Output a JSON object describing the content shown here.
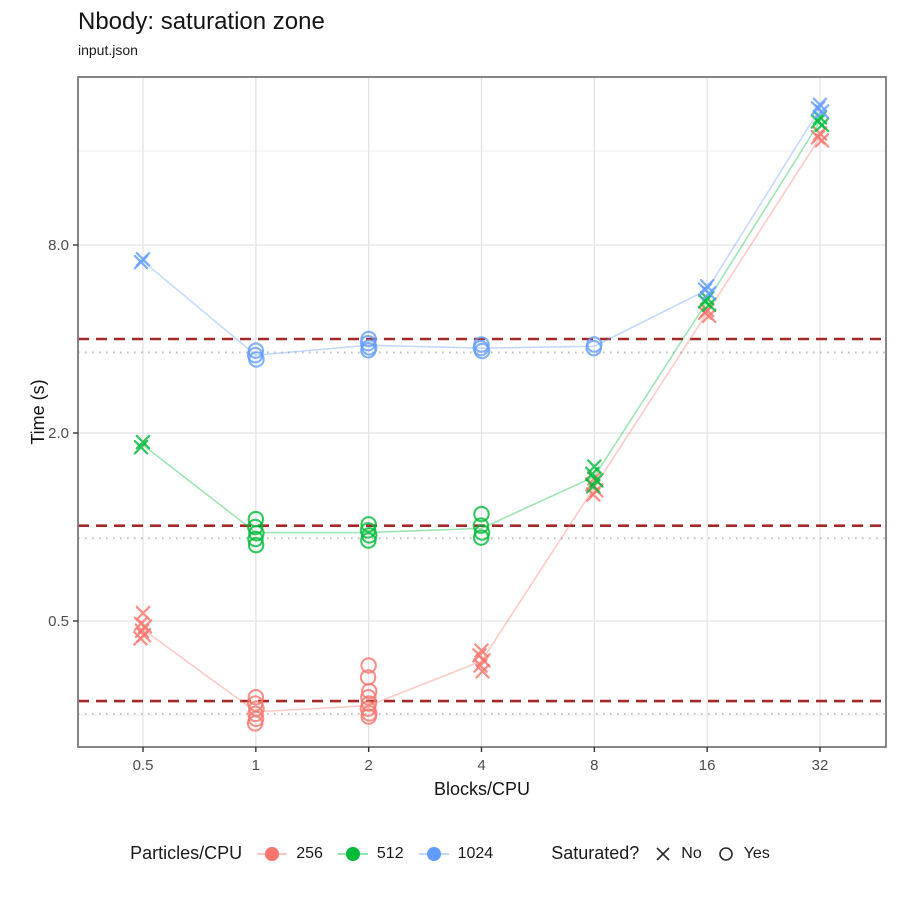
{
  "header": {
    "title": "Nbody: saturation zone",
    "subtitle": "input.json"
  },
  "chart_data": {
    "type": "scatter",
    "title": "Nbody: saturation zone",
    "subtitle": "input.json",
    "xlabel": "Blocks/CPU",
    "ylabel": "Time (s)",
    "x_scale": "log2",
    "y_scale": "log2",
    "grid": true,
    "legend_position": "bottom",
    "xlim": [
      0.34,
      47
    ],
    "ylim": [
      0.2,
      27.5
    ],
    "x_ticks": [
      "0.5",
      "1",
      "2",
      "4",
      "8",
      "16",
      "32"
    ],
    "x_tick_values": [
      0.5,
      1,
      2,
      4,
      8,
      16,
      32
    ],
    "y_ticks": [
      "0.5",
      "2.0",
      "8.0"
    ],
    "y_tick_values": [
      0.5,
      2.0,
      8.0
    ],
    "y_minor_gridlines": [
      0.25,
      1,
      4,
      16
    ],
    "reference_lines": {
      "dashed": {
        "color": "#A32A2A",
        "style": "dashed",
        "values": [
          4.0,
          1.01,
          0.277
        ]
      },
      "dotted": {
        "color": "#C2C2C2",
        "style": "dotted",
        "values": [
          3.62,
          0.92,
          0.252
        ]
      }
    },
    "series": [
      {
        "name": "256",
        "color": "#F8766D",
        "line_x": [
          0.5,
          1,
          2,
          4,
          8,
          16,
          32
        ],
        "line_y": [
          0.47,
          0.256,
          0.268,
          0.372,
          1.34,
          4.85,
          17.7
        ],
        "points": [
          {
            "x": 0.5,
            "shape": "x",
            "saturated": "No",
            "t": [
              0.53,
              0.49,
              0.48,
              0.465,
              0.45,
              0.44
            ]
          },
          {
            "x": 1,
            "shape": "o",
            "saturated": "Yes",
            "t": [
              0.285,
              0.272,
              0.262,
              0.252,
              0.243,
              0.235
            ]
          },
          {
            "x": 2,
            "shape": "o",
            "saturated": "Yes",
            "t": [
              0.36,
              0.33,
              0.298,
              0.285,
              0.272,
              0.262,
              0.253,
              0.247
            ]
          },
          {
            "x": 4,
            "shape": "x",
            "saturated": "No",
            "t": [
              0.402,
              0.388,
              0.374,
              0.36,
              0.345
            ]
          },
          {
            "x": 8,
            "shape": "x",
            "saturated": "No",
            "t": [
              1.43,
              1.37,
              1.31,
              1.27
            ]
          },
          {
            "x": 16,
            "shape": "x",
            "saturated": "No",
            "t": [
              4.95,
              4.85,
              4.75
            ]
          },
          {
            "x": 32,
            "shape": "x",
            "saturated": "No",
            "t": [
              18.2,
              17.7,
              17.3
            ]
          }
        ]
      },
      {
        "name": "512",
        "color": "#00BA38",
        "line_x": [
          0.5,
          1,
          2,
          4,
          8,
          16,
          32
        ],
        "line_y": [
          1.83,
          0.96,
          0.96,
          0.99,
          1.45,
          5.28,
          19.9
        ],
        "points": [
          {
            "x": 0.5,
            "shape": "x",
            "saturated": "No",
            "t": [
              1.87,
              1.8
            ]
          },
          {
            "x": 1,
            "shape": "o",
            "saturated": "Yes",
            "t": [
              1.06,
              1.0,
              0.955,
              0.915,
              0.875
            ]
          },
          {
            "x": 2,
            "shape": "o",
            "saturated": "Yes",
            "t": [
              1.02,
              0.975,
              0.94,
              0.905
            ]
          },
          {
            "x": 4,
            "shape": "o",
            "saturated": "Yes",
            "t": [
              1.1,
              1.01,
              0.96,
              0.925
            ]
          },
          {
            "x": 8,
            "shape": "x",
            "saturated": "No",
            "t": [
              1.56,
              1.48,
              1.41,
              1.35
            ]
          },
          {
            "x": 16,
            "shape": "x",
            "saturated": "No",
            "t": [
              5.4,
              5.28,
              5.15
            ]
          },
          {
            "x": 32,
            "shape": "x",
            "saturated": "No",
            "t": [
              20.5,
              19.9,
              19.4
            ]
          }
        ]
      },
      {
        "name": "1024",
        "color": "#619CFF",
        "line_x": [
          0.5,
          1,
          2,
          4,
          8,
          16,
          32
        ],
        "line_y": [
          7.1,
          3.55,
          3.82,
          3.74,
          3.79,
          5.75,
          21.9
        ],
        "points": [
          {
            "x": 0.5,
            "shape": "x",
            "saturated": "No",
            "t": [
              7.2,
              7.05
            ]
          },
          {
            "x": 1,
            "shape": "o",
            "saturated": "Yes",
            "t": [
              3.67,
              3.55,
              3.44
            ]
          },
          {
            "x": 2,
            "shape": "o",
            "saturated": "Yes",
            "t": [
              4.0,
              3.88,
              3.76,
              3.68
            ]
          },
          {
            "x": 4,
            "shape": "o",
            "saturated": "Yes",
            "t": [
              3.84,
              3.74,
              3.66
            ]
          },
          {
            "x": 8,
            "shape": "o",
            "saturated": "Yes",
            "t": [
              3.84,
              3.74
            ]
          },
          {
            "x": 16,
            "shape": "x",
            "saturated": "No",
            "t": [
              5.9,
              5.75,
              5.6
            ]
          },
          {
            "x": 32,
            "shape": "x",
            "saturated": "No",
            "t": [
              22.5,
              21.9,
              21.4
            ]
          }
        ]
      }
    ]
  },
  "legend": {
    "color_title": "Particles/CPU",
    "color_items": [
      {
        "label": "256",
        "color": "#F8766D"
      },
      {
        "label": "512",
        "color": "#00BA38"
      },
      {
        "label": "1024",
        "color": "#619CFF"
      }
    ],
    "shape_title": "Saturated?",
    "shape_items": [
      {
        "label": "No",
        "shape": "x"
      },
      {
        "label": "Yes",
        "shape": "o"
      }
    ]
  }
}
